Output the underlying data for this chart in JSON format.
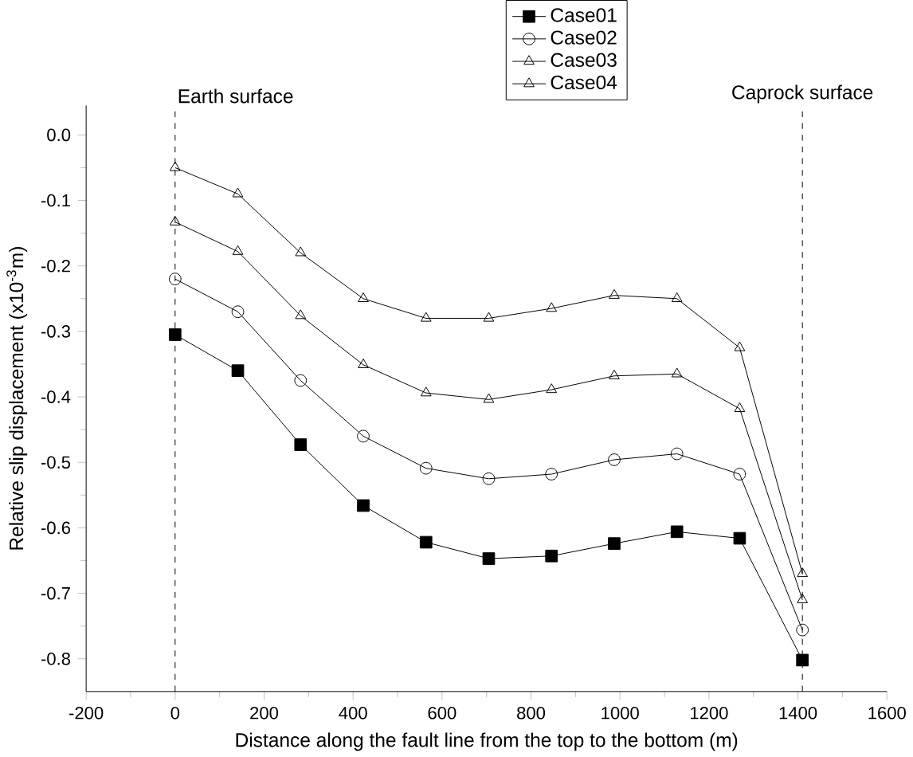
{
  "chart_data": {
    "type": "line",
    "xlabel": "Distance along the fault line from the top to the bottom (m)",
    "ylabel": "Relative slip displacement (x10$^{-3}$m)",
    "x": [
      0,
      141,
      282,
      423,
      564,
      705,
      846,
      987,
      1128,
      1269,
      1410
    ],
    "series": [
      {
        "name": "Case01",
        "color": "#000000",
        "marker": "square",
        "values": [
          -0.305,
          -0.36,
          -0.473,
          -0.566,
          -0.622,
          -0.647,
          -0.643,
          -0.624,
          -0.606,
          -0.616,
          -0.802
        ]
      },
      {
        "name": "Case02",
        "color": "#000000",
        "marker": "circle",
        "values": [
          -0.22,
          -0.27,
          -0.375,
          -0.46,
          -0.509,
          -0.525,
          -0.518,
          -0.496,
          -0.487,
          -0.518,
          -0.756
        ]
      },
      {
        "name": "Case03",
        "color": "#000000",
        "marker": "triangle",
        "values": [
          -0.133,
          -0.178,
          -0.276,
          -0.351,
          -0.394,
          -0.404,
          -0.389,
          -0.368,
          -0.365,
          -0.418,
          -0.71
        ]
      },
      {
        "name": "Case04",
        "color": "#000000",
        "marker": "triangle",
        "values": [
          -0.05,
          -0.09,
          -0.18,
          -0.25,
          -0.28,
          -0.28,
          -0.265,
          -0.245,
          -0.25,
          -0.325,
          -0.67
        ]
      }
    ],
    "xlim": [
      -200,
      1600
    ],
    "xticks": [
      -200,
      0,
      200,
      400,
      600,
      800,
      1000,
      1200,
      1400,
      1600
    ],
    "ylim": [
      -0.85,
      0.045
    ],
    "yticks": [
      -0.8,
      -0.7,
      -0.6,
      -0.5,
      -0.4,
      -0.3,
      -0.2,
      -0.1,
      {
        "value": 0,
        "label": "0.0"
      }
    ],
    "ref_lines": [
      {
        "axis": "x",
        "value": 0,
        "label": "Earth surface",
        "line_style": "dashed"
      },
      {
        "axis": "x",
        "value": 1410,
        "label": "Caprock surface",
        "line_style": "dashed"
      }
    ],
    "legend": "top",
    "line_style": "solid",
    "grid": false
  }
}
